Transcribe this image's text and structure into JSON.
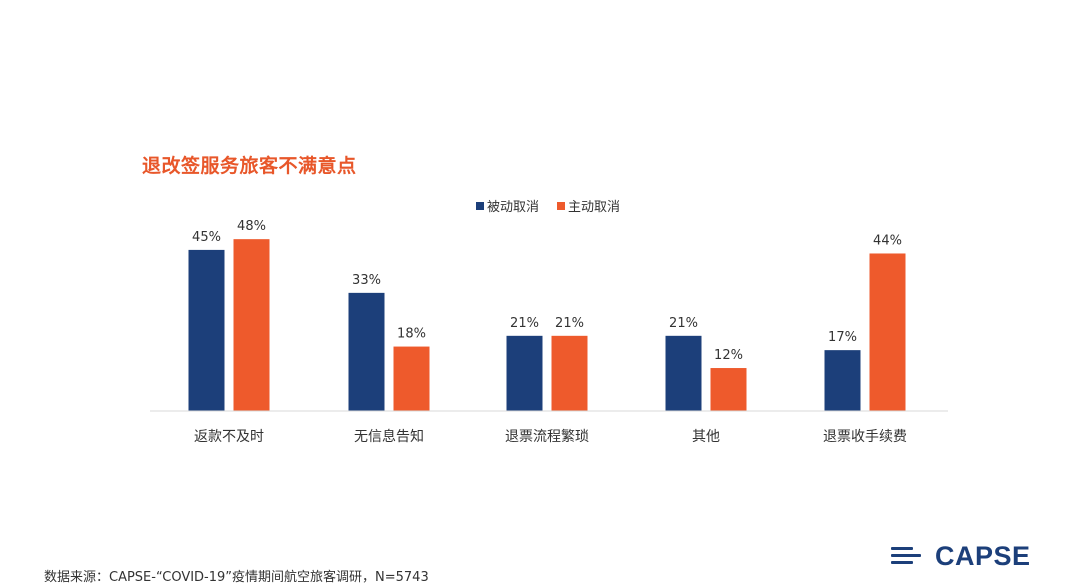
{
  "chart_data": {
    "type": "bar",
    "title": "退改签服务旅客不满意点",
    "categories": [
      "返款不及时",
      "无信息告知",
      "退票流程繁琐",
      "其他",
      "退票收手续费"
    ],
    "series": [
      {
        "name": "被动取消",
        "values": [
          45,
          33,
          21,
          21,
          17
        ],
        "labels": [
          "45%",
          "33%",
          "21%",
          "21%",
          "17%"
        ]
      },
      {
        "name": "主动取消",
        "values": [
          48,
          18,
          21,
          12,
          44
        ],
        "labels": [
          "48%",
          "18%",
          "21%",
          "12%",
          "44%"
        ]
      }
    ],
    "ylim": [
      0,
      50
    ],
    "grid": false,
    "legend_position": "top-center"
  },
  "colors": {
    "series_1": "#1C3F7A",
    "series_2": "#EE5A2C",
    "title": "#E8572A",
    "axis": "#D9D9D9",
    "text": "#333333"
  },
  "footer": {
    "source_text": "数据来源：CAPSE-“COVID-19”疫情期间航空旅客调研，N=5743"
  },
  "logo": {
    "text": "CAPSE"
  }
}
